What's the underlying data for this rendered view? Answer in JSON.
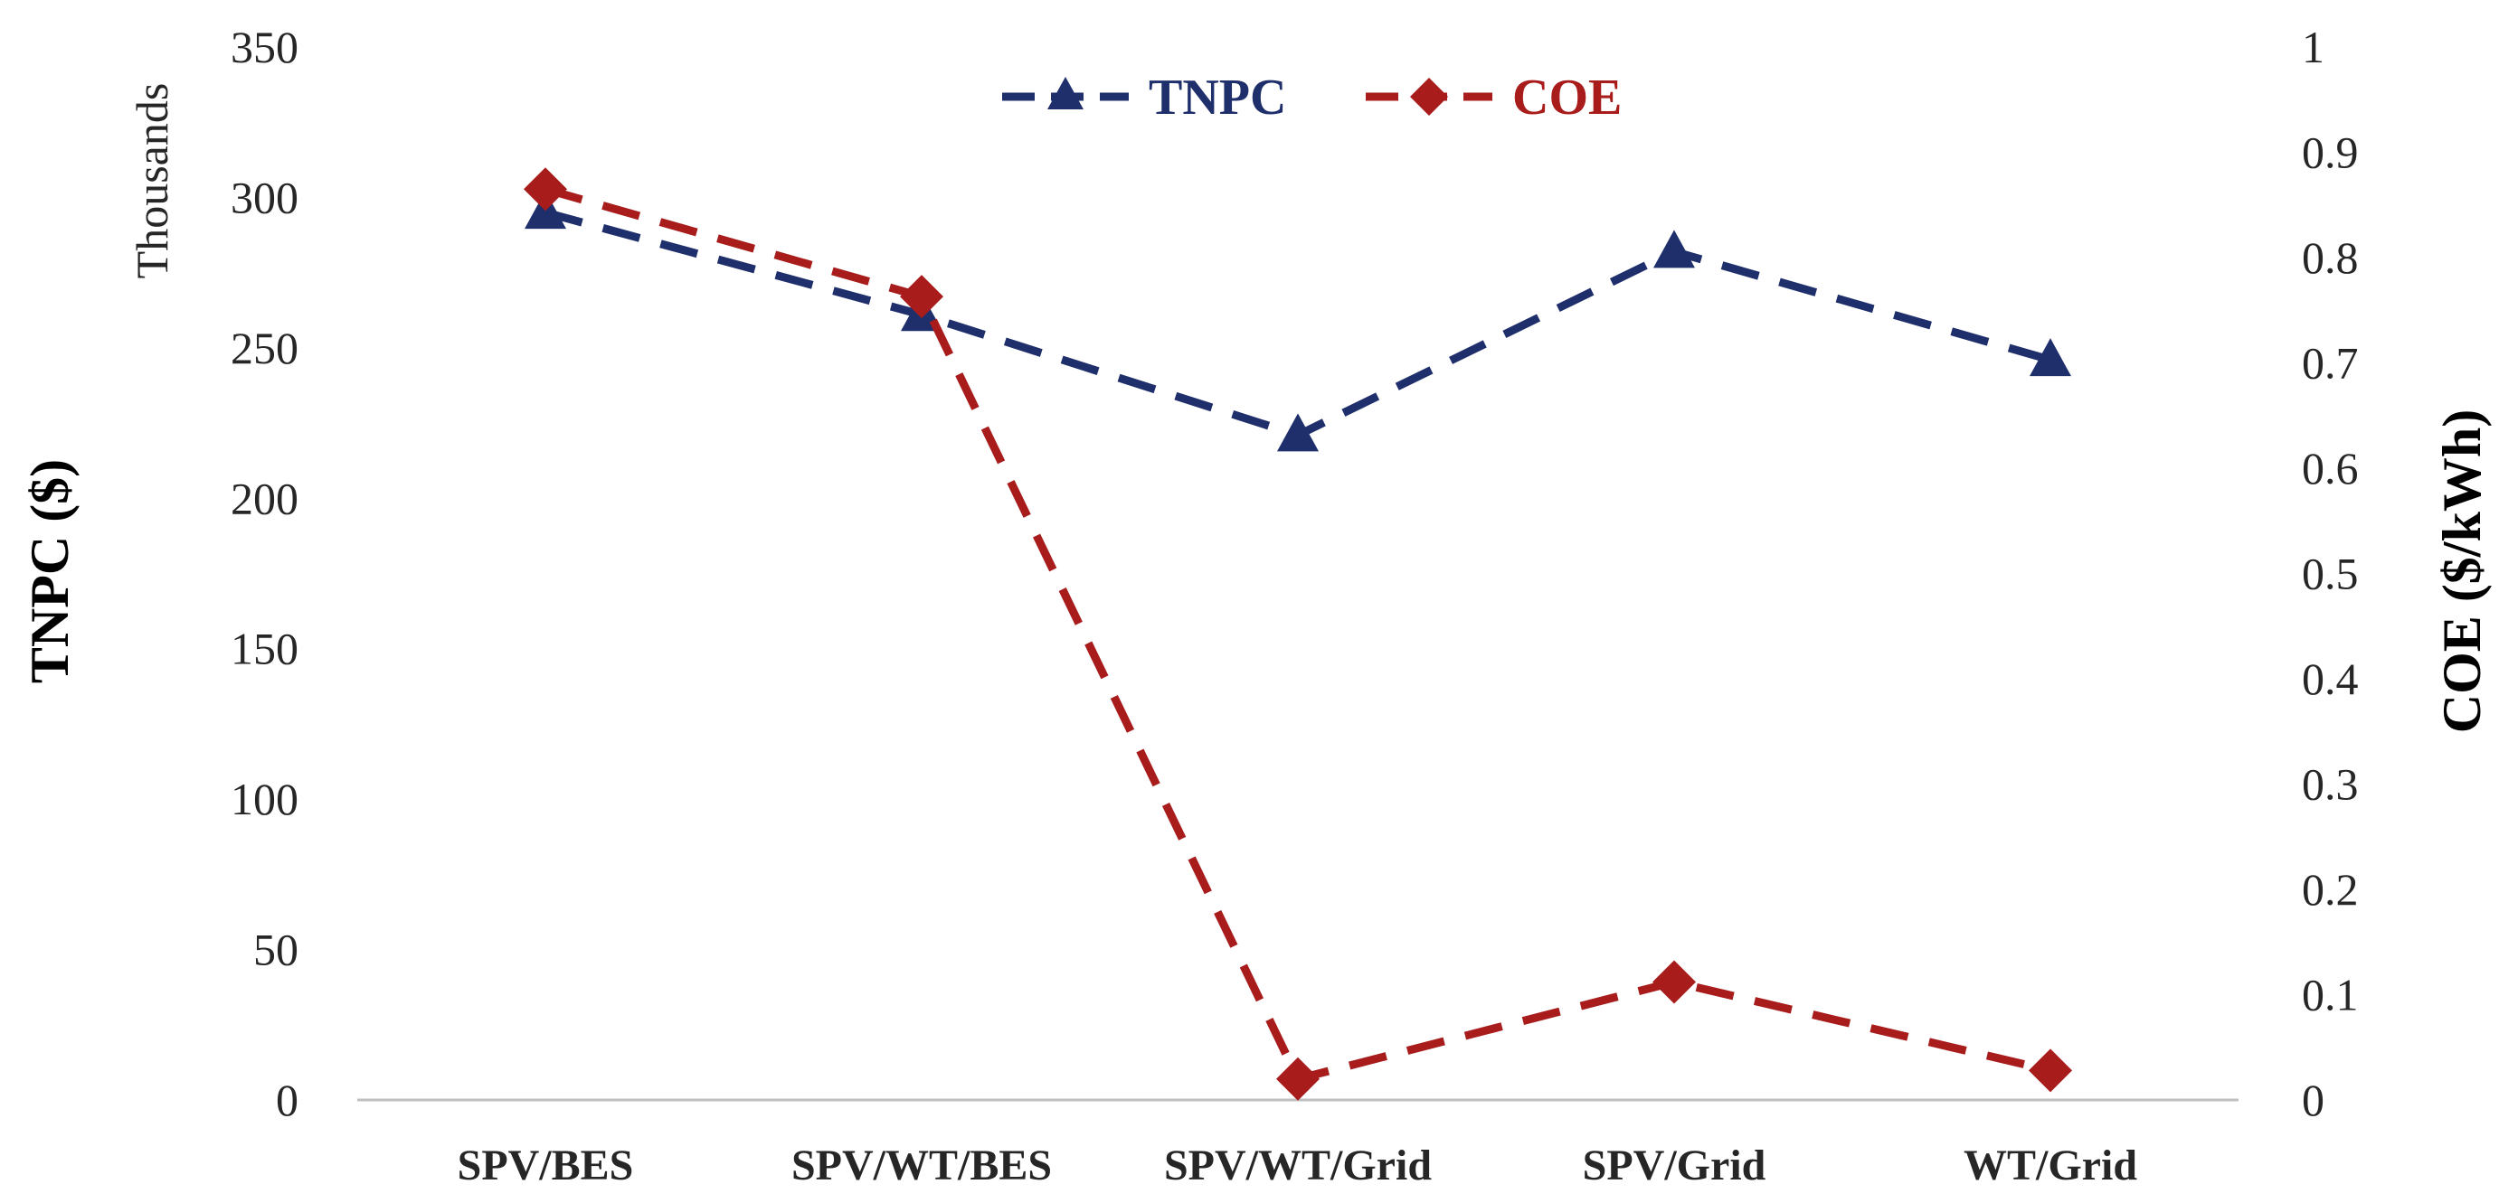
{
  "chart_data": {
    "type": "line",
    "categories": [
      "SPV/BES",
      "SPV/WT/BES",
      "SPV/WT/Grid",
      "SPV/Grid",
      "WT/Grid"
    ],
    "series": [
      {
        "name": "TNPC",
        "axis": "left",
        "values": [
          295,
          261,
          221,
          282,
          246
        ],
        "color": "#1F2F6B",
        "marker": "triangle",
        "dash": "dashed"
      },
      {
        "name": "COE",
        "axis": "right",
        "values": [
          0.865,
          0.763,
          0.02,
          0.112,
          0.028
        ],
        "color": "#A81C1C",
        "marker": "diamond",
        "dash": "dashed"
      }
    ],
    "y_left": {
      "label": "TNPC ($)",
      "unit_label": "Thousands",
      "range": [
        0,
        350
      ],
      "ticks": [
        "0",
        "50",
        "100",
        "150",
        "200",
        "250",
        "300",
        "350"
      ]
    },
    "y_right": {
      "label": "COE ($/kWh)",
      "range": [
        0,
        1
      ],
      "ticks": [
        "0",
        "0.1",
        "0.2",
        "0.3",
        "0.4",
        "0.5",
        "0.6",
        "0.7",
        "0.8",
        "0.9",
        "1"
      ]
    },
    "grid": false,
    "legend": {
      "position": "top-center"
    }
  }
}
